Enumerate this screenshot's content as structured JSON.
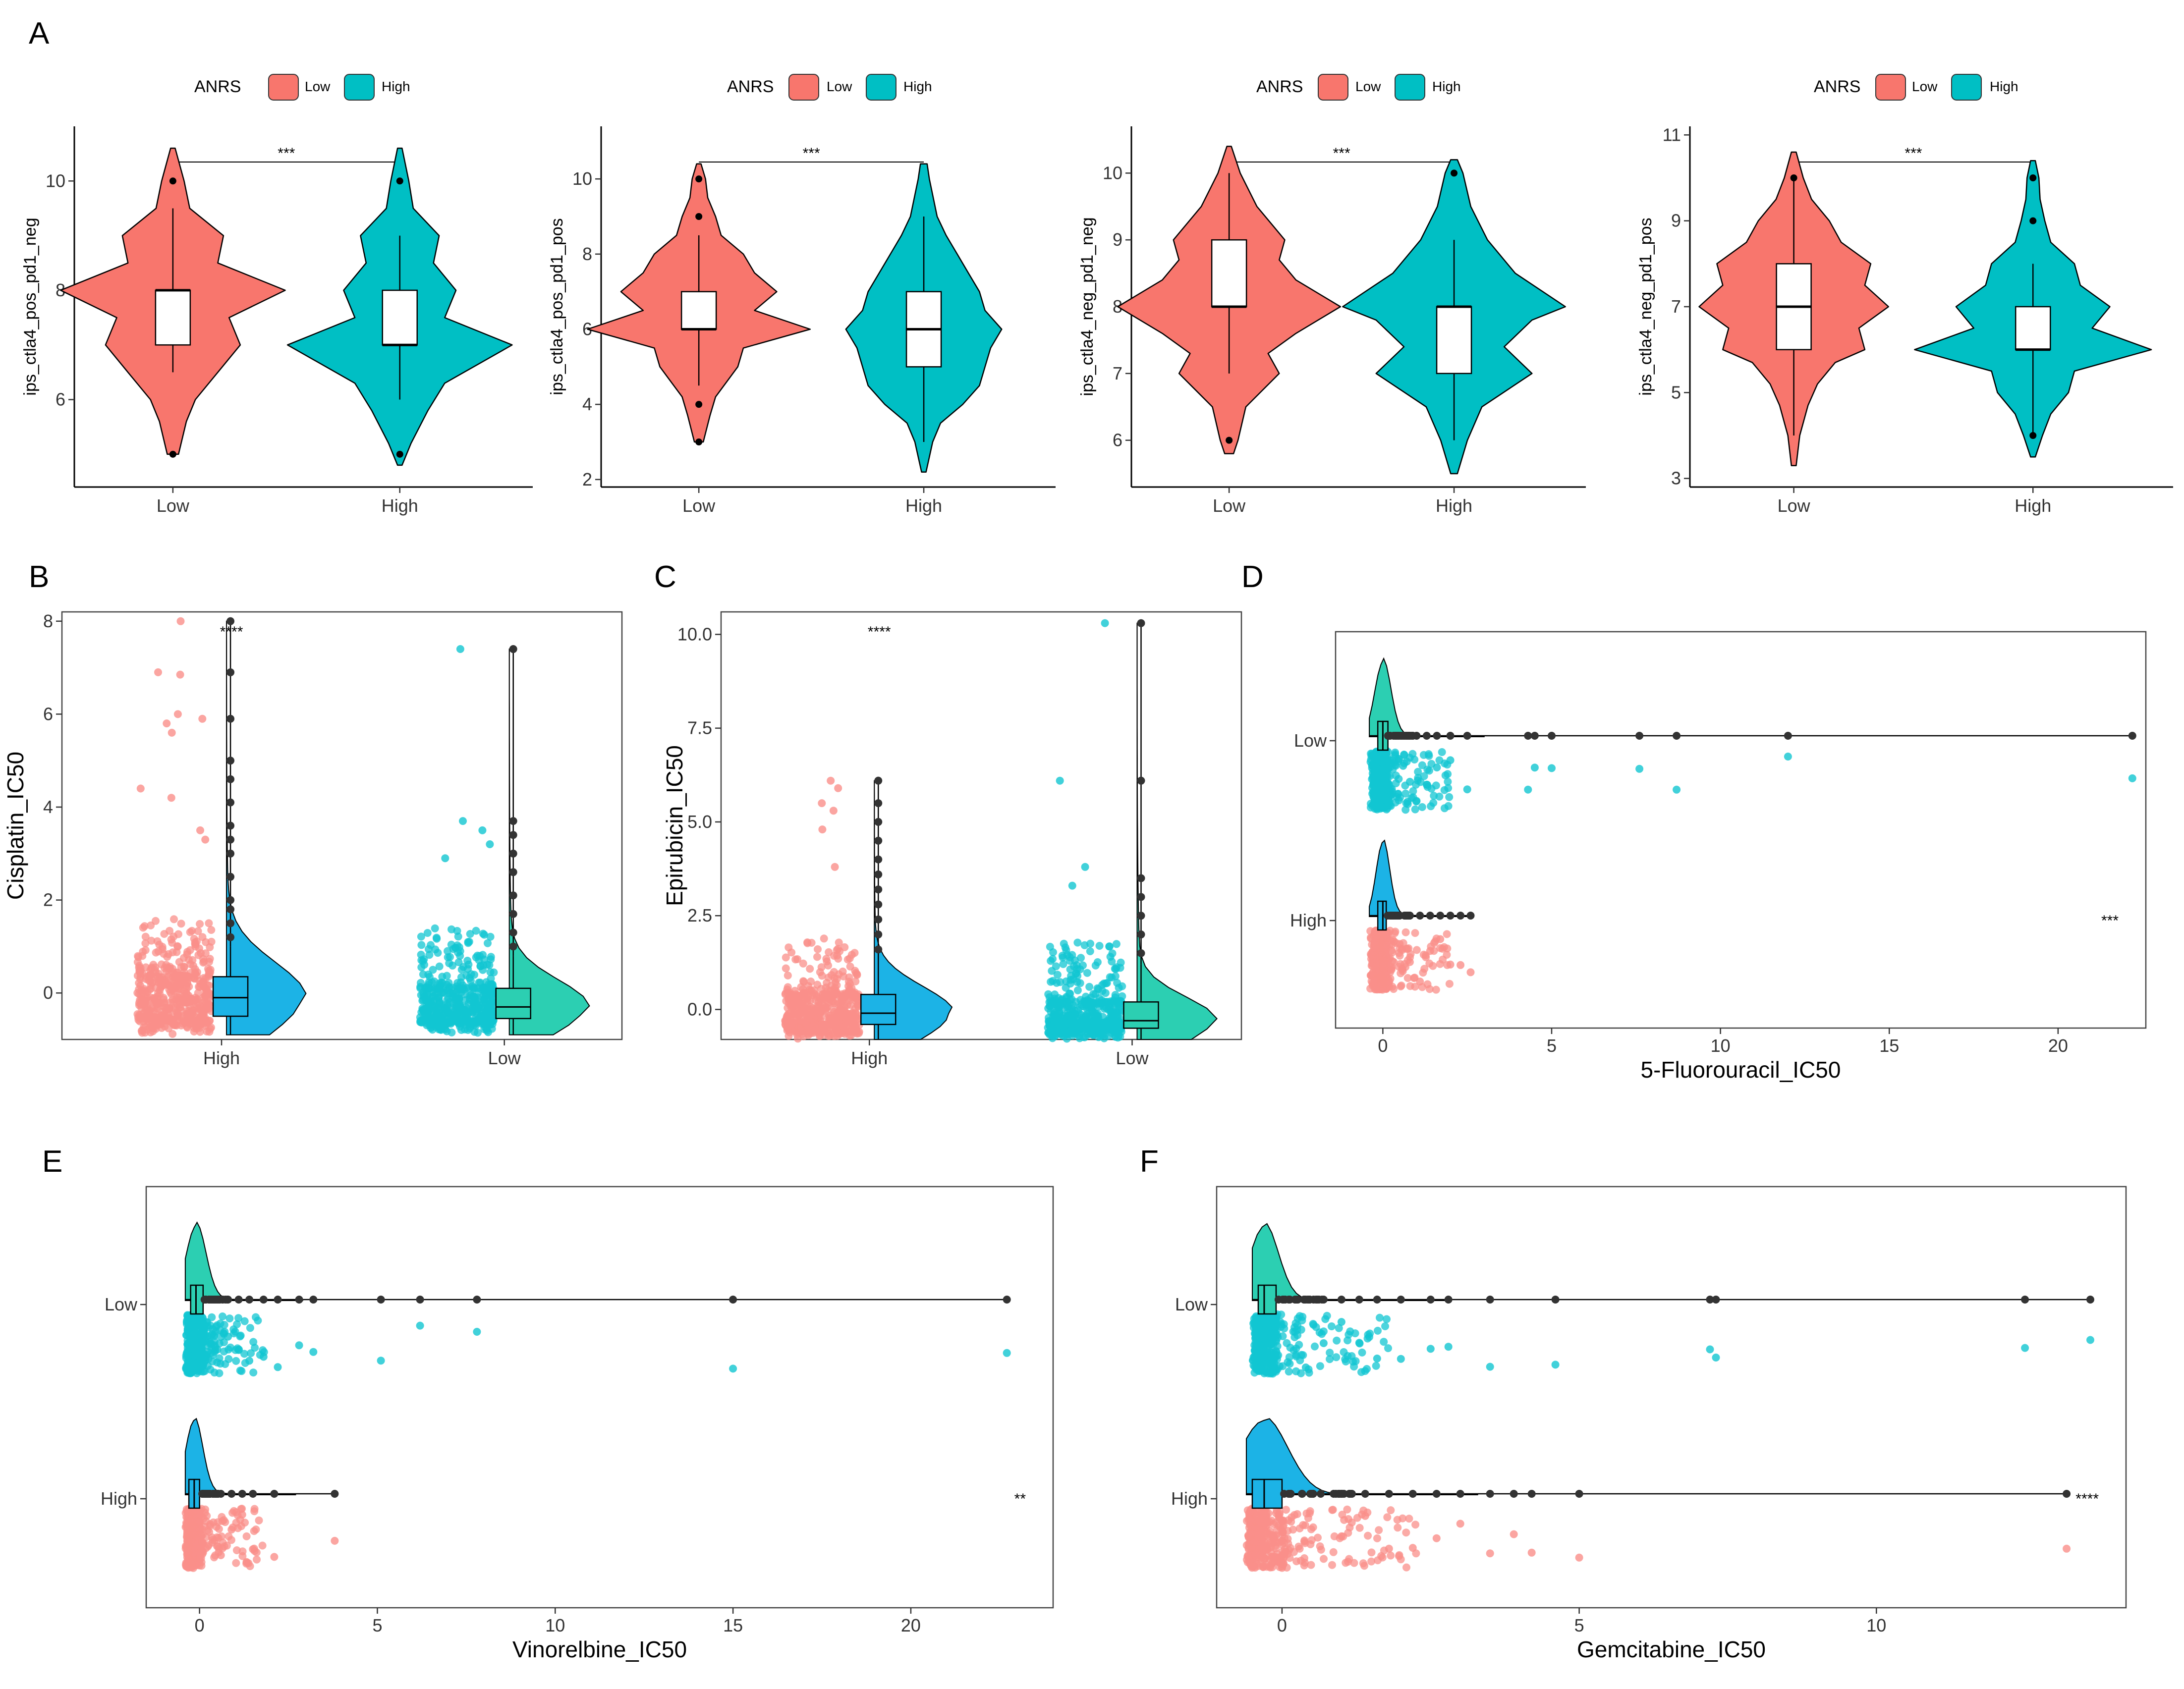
{
  "colors": {
    "low": "#F8766D",
    "high": "#00BFC4",
    "low_point": "#FA8F8A",
    "high_point": "#12C6D1",
    "density_high": "#1CB3E6",
    "density_low": "#2CCFB2",
    "dark_point": "#333333"
  },
  "legend": {
    "title": "ANRS",
    "low_label": "Low",
    "high_label": "High"
  },
  "chart_data": [
    {
      "panel": "A",
      "subplot": 1,
      "type": "violin",
      "ylabel": "ips_ctla4_pos_pd1_neg",
      "ylim": [
        4.4,
        11.0
      ],
      "yticks": [
        6,
        8,
        10
      ],
      "categories": [
        "Low",
        "High"
      ],
      "significance": "***",
      "groups": [
        {
          "name": "Low",
          "box": [
            6.5,
            7,
            8,
            8,
            9.5
          ],
          "outliers": [
            5,
            10
          ],
          "density": [
            [
              5,
              0.05
            ],
            [
              5.6,
              0.12
            ],
            [
              6,
              0.2
            ],
            [
              6.5,
              0.4
            ],
            [
              7,
              0.6
            ],
            [
              7.5,
              0.5
            ],
            [
              8,
              1.0
            ],
            [
              8.5,
              0.4
            ],
            [
              9,
              0.45
            ],
            [
              9.5,
              0.15
            ],
            [
              10,
              0.1
            ],
            [
              10.6,
              0.02
            ]
          ]
        },
        {
          "name": "High",
          "box": [
            6,
            7,
            7,
            8,
            9
          ],
          "outliers": [
            5,
            10
          ],
          "density": [
            [
              4.8,
              0.02
            ],
            [
              5.2,
              0.1
            ],
            [
              5.8,
              0.25
            ],
            [
              6.3,
              0.4
            ],
            [
              7,
              1.0
            ],
            [
              7.5,
              0.4
            ],
            [
              8,
              0.5
            ],
            [
              8.5,
              0.3
            ],
            [
              9,
              0.35
            ],
            [
              9.5,
              0.12
            ],
            [
              10,
              0.08
            ],
            [
              10.6,
              0.02
            ]
          ]
        }
      ]
    },
    {
      "panel": "A",
      "subplot": 2,
      "type": "violin",
      "ylabel": "ips_ctla4_pos_pd1_pos",
      "ylim": [
        1.8,
        11.4
      ],
      "yticks": [
        2,
        4,
        6,
        8,
        10
      ],
      "categories": [
        "Low",
        "High"
      ],
      "significance": "***",
      "groups": [
        {
          "name": "Low",
          "box": [
            4.5,
            6,
            6,
            7,
            8.5
          ],
          "outliers": [
            3,
            4,
            9,
            10
          ],
          "density": [
            [
              3,
              0.04
            ],
            [
              3.7,
              0.1
            ],
            [
              4.2,
              0.15
            ],
            [
              5,
              0.35
            ],
            [
              5.5,
              0.4
            ],
            [
              6,
              1.0
            ],
            [
              6.5,
              0.5
            ],
            [
              7,
              0.7
            ],
            [
              7.5,
              0.5
            ],
            [
              8,
              0.4
            ],
            [
              8.5,
              0.2
            ],
            [
              9,
              0.15
            ],
            [
              9.5,
              0.08
            ],
            [
              10,
              0.06
            ],
            [
              10.4,
              0.02
            ]
          ]
        },
        {
          "name": "High",
          "box": [
            3,
            5,
            6,
            7,
            9
          ],
          "outliers": [],
          "density": [
            [
              2.2,
              0.02
            ],
            [
              3,
              0.08
            ],
            [
              3.5,
              0.15
            ],
            [
              4,
              0.35
            ],
            [
              4.5,
              0.5
            ],
            [
              5,
              0.55
            ],
            [
              5.5,
              0.6
            ],
            [
              6,
              0.7
            ],
            [
              6.5,
              0.55
            ],
            [
              7,
              0.5
            ],
            [
              7.5,
              0.4
            ],
            [
              8,
              0.3
            ],
            [
              8.5,
              0.2
            ],
            [
              9,
              0.12
            ],
            [
              10,
              0.05
            ],
            [
              10.4,
              0.03
            ]
          ]
        }
      ]
    },
    {
      "panel": "A",
      "subplot": 3,
      "type": "violin",
      "ylabel": "ips_ctla4_neg_pd1_neg",
      "ylim": [
        5.3,
        10.7
      ],
      "yticks": [
        6,
        7,
        8,
        9,
        10
      ],
      "categories": [
        "Low",
        "High"
      ],
      "significance": "***",
      "groups": [
        {
          "name": "Low",
          "box": [
            7,
            8,
            8,
            9,
            10
          ],
          "outliers": [
            6
          ],
          "density": [
            [
              5.8,
              0.04
            ],
            [
              6,
              0.08
            ],
            [
              6.5,
              0.15
            ],
            [
              7,
              0.45
            ],
            [
              7.3,
              0.35
            ],
            [
              7.6,
              0.6
            ],
            [
              8,
              1.0
            ],
            [
              8.4,
              0.6
            ],
            [
              8.7,
              0.45
            ],
            [
              9,
              0.5
            ],
            [
              9.5,
              0.25
            ],
            [
              10,
              0.1
            ],
            [
              10.4,
              0.02
            ]
          ]
        },
        {
          "name": "High",
          "box": [
            6,
            7,
            8,
            8,
            9
          ],
          "outliers": [
            10
          ],
          "density": [
            [
              5.5,
              0.03
            ],
            [
              6,
              0.12
            ],
            [
              6.5,
              0.25
            ],
            [
              7,
              0.7
            ],
            [
              7.4,
              0.45
            ],
            [
              7.8,
              0.7
            ],
            [
              8,
              1.0
            ],
            [
              8.5,
              0.55
            ],
            [
              9,
              0.3
            ],
            [
              9.5,
              0.15
            ],
            [
              10,
              0.08
            ],
            [
              10.2,
              0.03
            ]
          ]
        }
      ]
    },
    {
      "panel": "A",
      "subplot": 4,
      "type": "violin",
      "ylabel": "ips_ctla4_neg_pd1_pos",
      "ylim": [
        2.8,
        11.2
      ],
      "yticks": [
        3,
        5,
        7,
        9,
        11
      ],
      "categories": [
        "Low",
        "High"
      ],
      "significance": "***",
      "groups": [
        {
          "name": "Low",
          "box": [
            4,
            6,
            7,
            8,
            10
          ],
          "outliers": [
            10
          ],
          "density": [
            [
              3.3,
              0.02
            ],
            [
              4,
              0.05
            ],
            [
              4.7,
              0.12
            ],
            [
              5.2,
              0.2
            ],
            [
              5.7,
              0.35
            ],
            [
              6,
              0.6
            ],
            [
              6.5,
              0.55
            ],
            [
              7,
              0.8
            ],
            [
              7.5,
              0.6
            ],
            [
              8,
              0.65
            ],
            [
              8.5,
              0.4
            ],
            [
              9,
              0.3
            ],
            [
              9.5,
              0.15
            ],
            [
              10,
              0.08
            ],
            [
              10.6,
              0.02
            ]
          ]
        },
        {
          "name": "High",
          "box": [
            4,
            6,
            6,
            7,
            8
          ],
          "outliers": [
            4,
            9,
            10
          ],
          "density": [
            [
              3.5,
              0.02
            ],
            [
              4,
              0.08
            ],
            [
              4.5,
              0.15
            ],
            [
              5,
              0.3
            ],
            [
              5.5,
              0.35
            ],
            [
              6,
              1.0
            ],
            [
              6.5,
              0.5
            ],
            [
              7,
              0.65
            ],
            [
              7.5,
              0.4
            ],
            [
              8,
              0.35
            ],
            [
              8.5,
              0.15
            ],
            [
              9,
              0.1
            ],
            [
              9.5,
              0.06
            ],
            [
              10,
              0.05
            ],
            [
              10.4,
              0.02
            ]
          ]
        }
      ]
    },
    {
      "panel": "B",
      "type": "raincloud",
      "orientation": "vertical",
      "ylabel": "Cisplatin_IC50",
      "ylim": [
        -1.0,
        8.2
      ],
      "yticks": [
        0,
        2,
        4,
        6,
        8
      ],
      "categories": [
        "High",
        "Low"
      ],
      "significance": "****",
      "groups": [
        {
          "name": "High",
          "box": [
            -0.9,
            -0.5,
            -0.1,
            0.35,
            1.0
          ],
          "max": 8.0,
          "outliers": [
            1.2,
            1.5,
            1.8,
            2.0,
            2.5,
            3.0,
            3.3,
            3.6,
            4.1,
            4.6,
            5.0,
            5.9,
            6.9,
            8.0
          ],
          "jitter_extremes": [
            6.85,
            6.9,
            6.0,
            5.8,
            5.9,
            5.6,
            8.0,
            4.4,
            4.2,
            3.5,
            3.3
          ]
        },
        {
          "name": "Low",
          "box": [
            -0.9,
            -0.55,
            -0.3,
            0.1,
            0.8
          ],
          "max": 7.4,
          "outliers": [
            1.0,
            1.3,
            1.7,
            2.1,
            2.6,
            3.0,
            3.4,
            3.7,
            7.4
          ],
          "jitter_extremes": [
            7.4,
            3.7,
            3.5,
            3.2,
            2.9
          ]
        }
      ]
    },
    {
      "panel": "C",
      "type": "raincloud",
      "orientation": "vertical",
      "ylabel": "Epirubicin_IC50",
      "ylim": [
        -0.8,
        10.6
      ],
      "yticks": [
        0.0,
        2.5,
        5.0,
        7.5,
        10.0
      ],
      "categories": [
        "High",
        "Low"
      ],
      "significance": "****",
      "groups": [
        {
          "name": "High",
          "box": [
            -0.8,
            -0.4,
            -0.1,
            0.4,
            1.3
          ],
          "max": 6.1,
          "outliers": [
            1.6,
            2.0,
            2.4,
            2.8,
            3.2,
            3.6,
            4.0,
            4.5,
            5.0,
            5.5,
            6.1
          ],
          "jitter_extremes": [
            6.1,
            5.9,
            5.5,
            5.3,
            4.8,
            3.8
          ]
        },
        {
          "name": "Low",
          "box": [
            -0.8,
            -0.5,
            -0.3,
            0.2,
            1.2
          ],
          "max": 10.3,
          "outliers": [
            1.5,
            2.0,
            2.5,
            3.0,
            3.5,
            6.1,
            10.3
          ],
          "jitter_extremes": [
            10.3,
            6.1,
            3.8,
            3.3
          ]
        }
      ]
    },
    {
      "panel": "D",
      "type": "raincloud",
      "orientation": "horizontal",
      "xlabel": "5-Fluorouracil_IC50",
      "xlim": [
        -1.4,
        22.6
      ],
      "xticks": [
        0,
        5,
        10,
        15,
        20
      ],
      "categories": [
        "Low",
        "High"
      ],
      "significance": "***",
      "groups": [
        {
          "name": "Low",
          "box": [
            -0.4,
            -0.15,
            0.0,
            0.15,
            0.5
          ],
          "max": 22.2,
          "outliers": [
            0.6,
            0.8,
            1.0,
            1.3,
            1.6,
            2.0,
            2.5,
            4.3,
            4.5,
            5.0,
            7.6,
            8.7,
            12.0,
            22.2
          ]
        },
        {
          "name": "High",
          "box": [
            -0.4,
            -0.15,
            0.0,
            0.1,
            0.4
          ],
          "max": 2.6,
          "outliers": [
            0.5,
            0.8,
            1.1,
            1.4,
            1.7,
            2.0,
            2.3,
            2.6
          ]
        }
      ]
    },
    {
      "panel": "E",
      "type": "raincloud",
      "orientation": "horizontal",
      "xlabel": "Vinorelbine_IC50",
      "xlim": [
        -1.5,
        24.0
      ],
      "xticks": [
        0,
        5,
        10,
        15,
        20
      ],
      "categories": [
        "Low",
        "High"
      ],
      "significance": "**",
      "groups": [
        {
          "name": "Low",
          "box": [
            -0.4,
            -0.25,
            -0.1,
            0.1,
            0.4
          ],
          "max": 22.7,
          "outliers": [
            0.5,
            0.8,
            1.1,
            1.4,
            1.8,
            2.2,
            2.8,
            3.2,
            5.1,
            6.2,
            7.8,
            15.0,
            22.7
          ]
        },
        {
          "name": "High",
          "box": [
            -0.4,
            -0.3,
            -0.15,
            0.0,
            0.2
          ],
          "max": 3.8,
          "outliers": [
            0.3,
            0.6,
            0.9,
            1.2,
            1.5,
            2.1,
            3.8
          ]
        }
      ]
    },
    {
      "panel": "F",
      "type": "raincloud",
      "orientation": "horizontal",
      "xlabel": "Gemcitabine_IC50",
      "xlim": [
        -1.1,
        14.2
      ],
      "xticks": [
        0,
        5,
        10
      ],
      "categories": [
        "Low",
        "High"
      ],
      "significance": "****",
      "groups": [
        {
          "name": "Low",
          "box": [
            -0.5,
            -0.4,
            -0.3,
            -0.1,
            0.3
          ],
          "max": 13.6,
          "outliers": [
            0.4,
            0.7,
            1.0,
            1.3,
            1.6,
            2.0,
            2.5,
            2.8,
            3.5,
            4.6,
            7.2,
            7.3,
            12.5,
            13.6
          ]
        },
        {
          "name": "High",
          "box": [
            -0.6,
            -0.5,
            -0.3,
            0.0,
            0.8
          ],
          "max": 13.2,
          "outliers": [
            1.0,
            1.4,
            1.8,
            2.2,
            2.6,
            3.0,
            3.5,
            3.9,
            4.2,
            5.0,
            13.2
          ]
        }
      ]
    }
  ]
}
